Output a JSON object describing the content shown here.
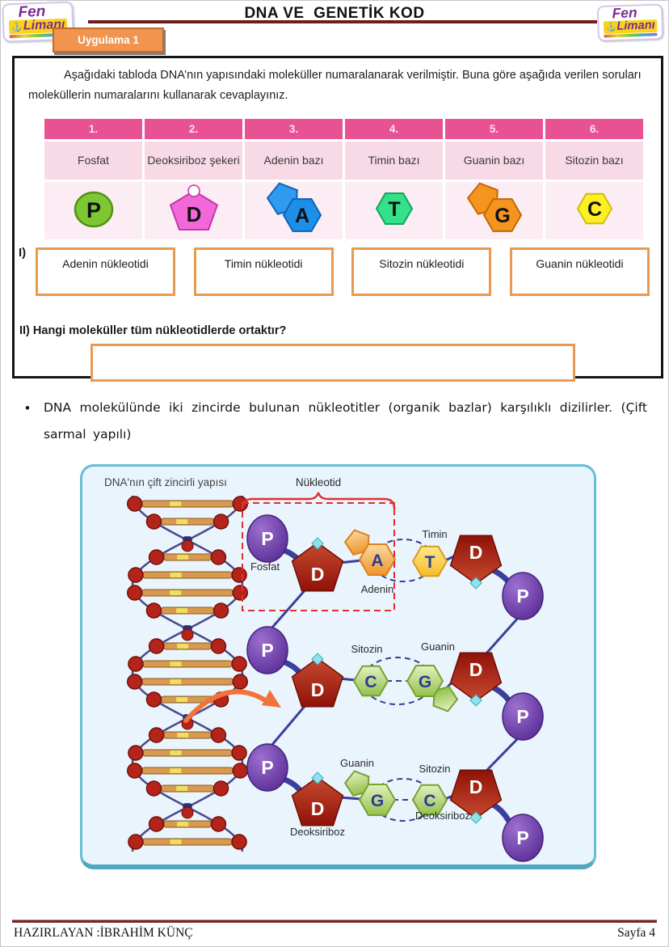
{
  "header": {
    "title": "DNA VE  GENETİK KOD",
    "tab_label": "Uygulama 1",
    "logo": {
      "line1": "Fen",
      "line2": "Limanı",
      "anchor_icon": "anchor"
    }
  },
  "worksheet": {
    "intro": "Aşağıdaki tabloda DNA’nın yapısındaki moleküller numaralanarak verilmiştir. Buna göre aşağıda verilen soruları moleküllerin numaralarını kullanarak cevaplayınız.",
    "table": {
      "columns": [
        {
          "number": "1.",
          "name": "Fosfat",
          "letter": "P"
        },
        {
          "number": "2.",
          "name": "Deoksiriboz şekeri",
          "letter": "D"
        },
        {
          "number": "3.",
          "name": "Adenin bazı",
          "letter": "A"
        },
        {
          "number": "4.",
          "name": "Timin bazı",
          "letter": "T"
        },
        {
          "number": "5.",
          "name": "Guanin bazı",
          "letter": "G"
        },
        {
          "number": "6.",
          "name": "Sitozin bazı",
          "letter": "C"
        }
      ]
    },
    "question1": {
      "label": "I)",
      "boxes": [
        "Adenin nükleotidi",
        "Timin nükleotidi",
        "Sitozin nükleotidi",
        "Guanin nükleotidi"
      ]
    },
    "question2": {
      "label": "II) Hangi moleküller tüm nükleotidlerde ortaktır?",
      "answer": ""
    }
  },
  "bullet": {
    "text": "DNA molekülünde iki zincirde bulunan nükleotitler (organik bazlar) karşılıklı dizilirler. (Çift sarmal yapılı)"
  },
  "diagram": {
    "title": "DNA'nın çift zincirli yapısı",
    "nucleotide_label": "Nükleotid",
    "labels": {
      "fosfat": "Fosfat",
      "adenin": "Adenin",
      "timin": "Timin",
      "sitozin": "Sitozin",
      "guanin": "Guanin",
      "deoksiriboz": "Deoksiriboz"
    },
    "letters": {
      "p": "P",
      "d": "D",
      "a": "A",
      "t": "T",
      "c": "C",
      "g": "G"
    }
  },
  "footer": {
    "prepared_by": "HAZIRLAYAN :İBRAHİM KÜNÇ",
    "page": "Sayfa 4"
  },
  "colors": {
    "header_line": "#6C1D1D",
    "tab_orange": "#F0944E",
    "table_header_pink": "#E85292",
    "table_row_pink": "#F8D9E6",
    "answer_box_border": "#E89A50",
    "panel_border": "#66BFD4",
    "panel_bg": "#EAF4FC",
    "phosphate_purple": "#5A2D96",
    "deoxyribose_red": "#A81D10",
    "base_green": "#94C14E",
    "base_orange": "#F0952E",
    "base_yellow": "#F5BC2A",
    "molecule_green": "#7DC832",
    "molecule_pink": "#F268D8",
    "molecule_blue": "#1E8FE8",
    "molecule_mint": "#35E08A",
    "molecule_orange": "#F5941E",
    "molecule_yellow": "#FDF022"
  }
}
